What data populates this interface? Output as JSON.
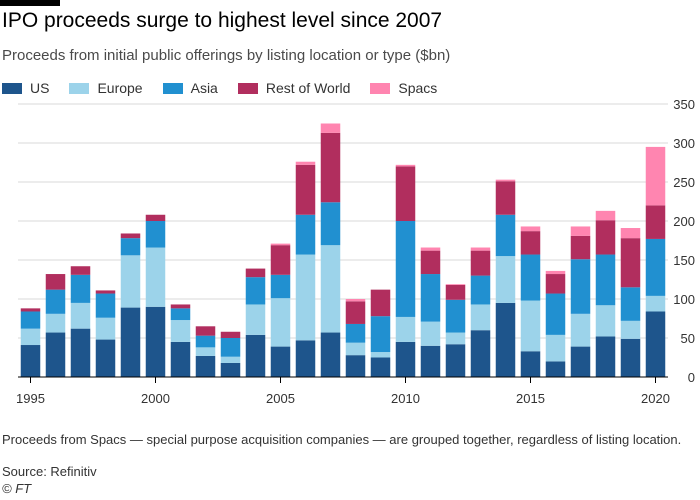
{
  "title": "IPO proceeds surge to highest level since 2007",
  "subtitle": "Proceeds from initial public offerings by listing location or type ($bn)",
  "footnote": "Proceeds from Spacs — special purpose acquisition companies — are grouped together, regardless of listing location.",
  "source": "Source: Refinitiv",
  "copyright": "© FT",
  "colors": {
    "US": "#1e558c",
    "Europe": "#9cd3ea",
    "Asia": "#2190d0",
    "Rest of World": "#b12e5e",
    "Spacs": "#ff85b0",
    "grid": "#d9d9d9",
    "axis": "#000000"
  },
  "chart_data": {
    "type": "bar",
    "stacked": true,
    "categories": [
      "1995",
      "1996",
      "1997",
      "1998",
      "1999",
      "2000",
      "2001",
      "2002",
      "2003",
      "2004",
      "2005",
      "2006",
      "2007",
      "2008",
      "2009",
      "2010",
      "2011",
      "2012",
      "2013",
      "2014",
      "2015",
      "2016",
      "2017",
      "2018",
      "2019",
      "2020"
    ],
    "x_tick_labels": [
      "1995",
      "2000",
      "2005",
      "2010",
      "2015",
      "2020"
    ],
    "y_tick_labels": [
      "0",
      "50",
      "100",
      "150",
      "200",
      "250",
      "300",
      "350"
    ],
    "ylim": [
      0,
      350
    ],
    "y_axis_position": "right",
    "grid": true,
    "legend_position": "top-left",
    "series": [
      {
        "name": "US",
        "values": [
          41,
          57,
          62,
          48,
          89,
          90,
          45,
          27,
          18,
          54,
          39,
          47,
          57,
          28,
          25,
          45,
          40,
          42,
          60,
          95,
          33,
          20,
          39,
          52,
          49,
          84
        ]
      },
      {
        "name": "Europe",
        "values": [
          21,
          24,
          33,
          28,
          67,
          76,
          28,
          11,
          8,
          39,
          62,
          110,
          112,
          16,
          7,
          32,
          31,
          15,
          33,
          60,
          65,
          34,
          42,
          40,
          23,
          20
        ]
      },
      {
        "name": "Asia",
        "values": [
          22,
          31,
          36,
          31,
          22,
          34,
          15,
          15,
          24,
          35,
          30,
          51,
          55,
          24,
          46,
          123,
          61,
          42,
          37,
          53,
          59,
          53,
          70,
          65,
          43,
          73
        ]
      },
      {
        "name": "Rest of World",
        "values": [
          4,
          20,
          11,
          4,
          6,
          8,
          5,
          12,
          8,
          11,
          38,
          64,
          89,
          29,
          34,
          70,
          30,
          19,
          32,
          43,
          30,
          25,
          30,
          44,
          63,
          43
        ]
      },
      {
        "name": "Spacs",
        "values": [
          0,
          0,
          0,
          0,
          0,
          0,
          0,
          0,
          0,
          0,
          2,
          4,
          12,
          3,
          0,
          2,
          4,
          1,
          4,
          2,
          6,
          4,
          12,
          12,
          13,
          75
        ]
      }
    ]
  }
}
